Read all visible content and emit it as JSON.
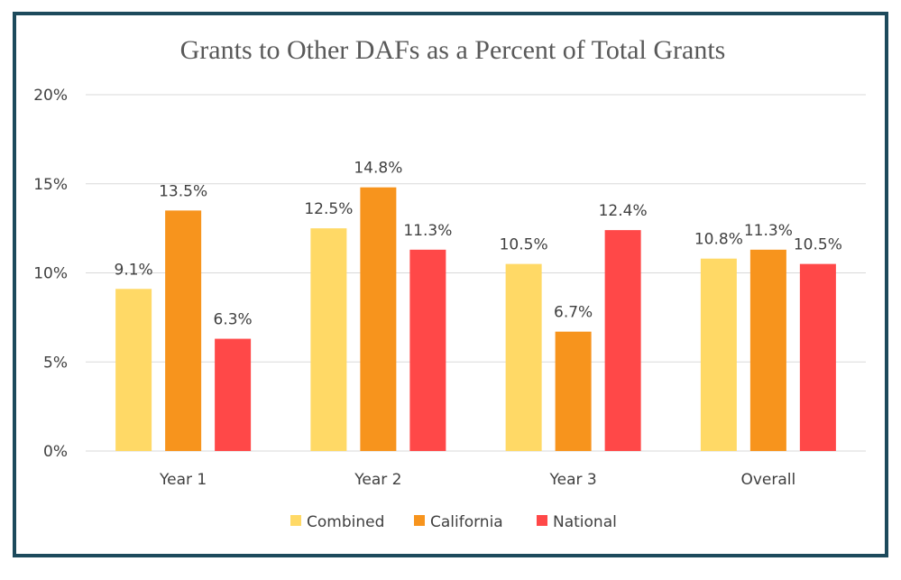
{
  "chart_data": {
    "type": "bar",
    "title": "Grants to Other DAFs as a Percent of Total Grants",
    "categories": [
      "Year 1",
      "Year 2",
      "Year 3",
      "Overall"
    ],
    "series": [
      {
        "name": "Combined",
        "color": "#ffd966",
        "values": [
          9.1,
          12.5,
          10.5,
          10.8
        ],
        "labels": [
          "9.1%",
          "12.5%",
          "10.5%",
          "10.8%"
        ]
      },
      {
        "name": "California",
        "color": "#f7941d",
        "values": [
          13.5,
          14.8,
          6.7,
          11.3
        ],
        "labels": [
          "13.5%",
          "14.8%",
          "6.7%",
          "11.3%"
        ]
      },
      {
        "name": "National",
        "color": "#ff4848",
        "values": [
          6.3,
          11.3,
          12.4,
          10.5
        ],
        "labels": [
          "6.3%",
          "11.3%",
          "12.4%",
          "10.5%"
        ]
      }
    ],
    "ylim": [
      0,
      20
    ],
    "yticks": [
      0,
      5,
      10,
      15,
      20
    ],
    "ytick_labels": [
      "0%",
      "5%",
      "10%",
      "15%",
      "20%"
    ],
    "xlabel": "",
    "ylabel": "",
    "grid": true,
    "legend_position": "bottom"
  }
}
